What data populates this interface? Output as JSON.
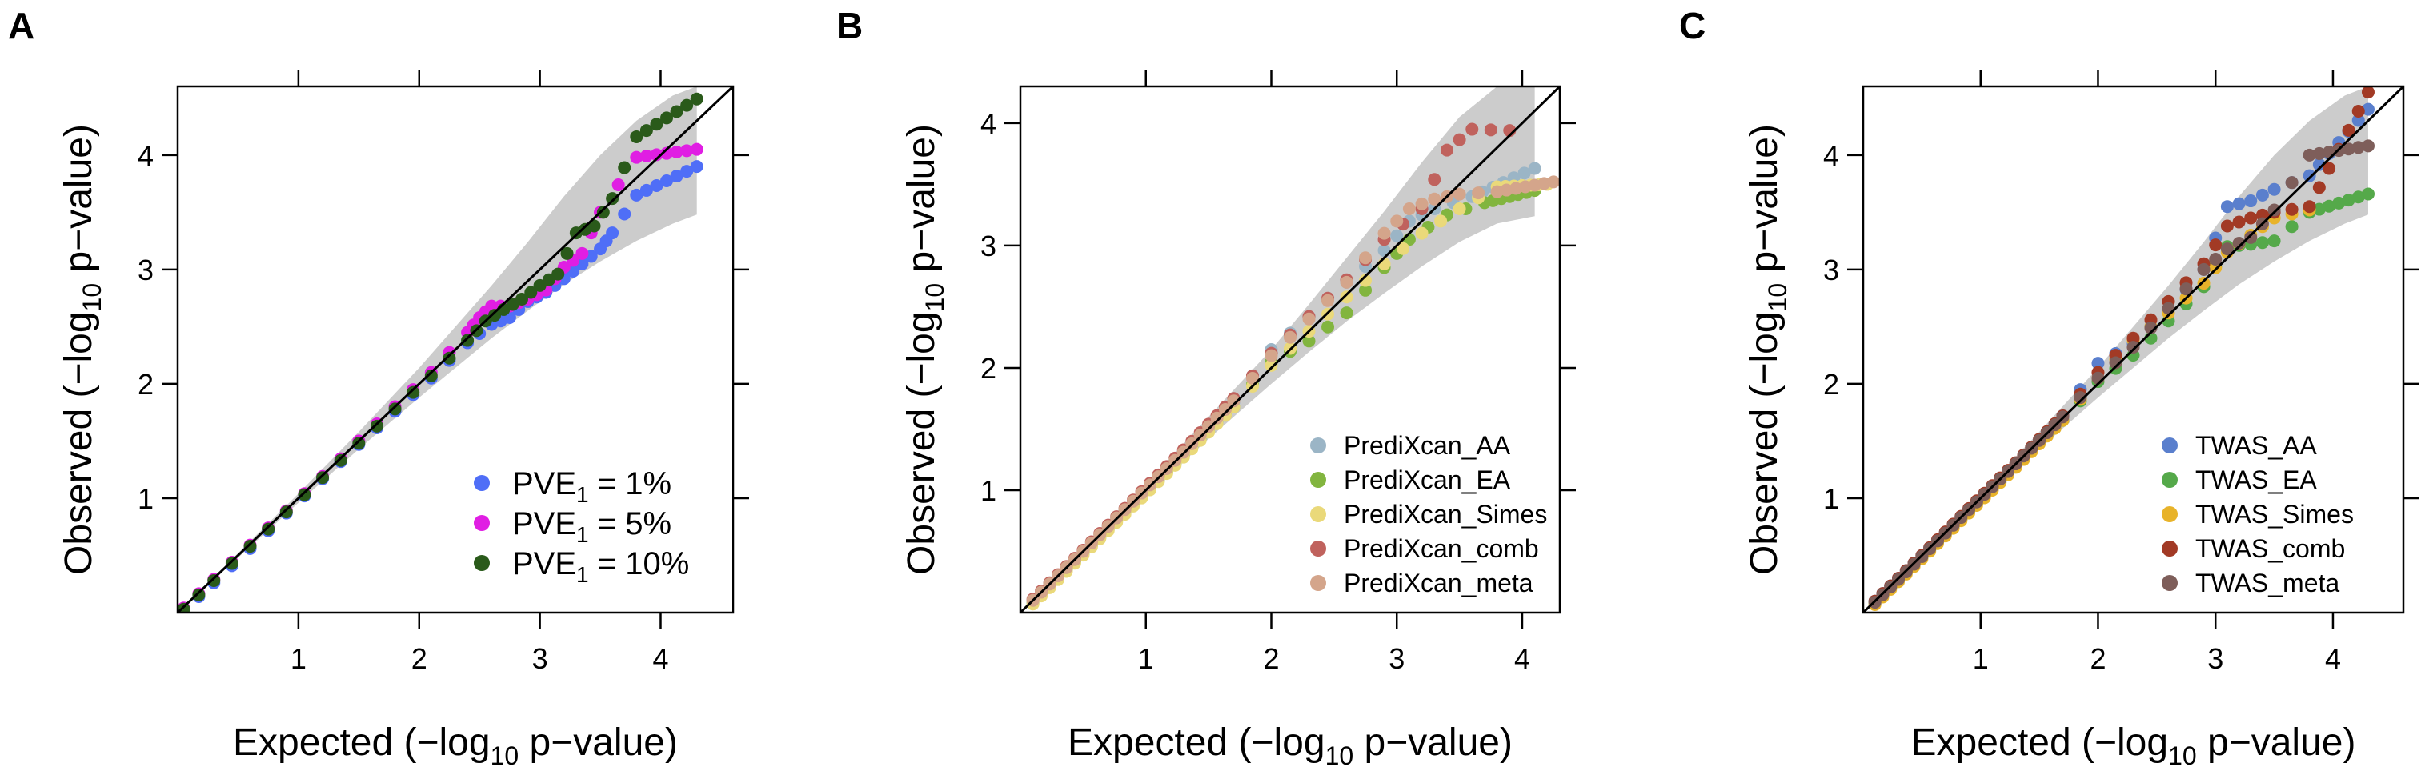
{
  "figure": {
    "xlabel_prefix": "Expected (",
    "xlabel_minus": "−log",
    "xlabel_sub": "10",
    "xlabel_suffix": " p−value)",
    "ylabel_prefix": "Observed (",
    "ylabel_minus": "−log",
    "ylabel_sub": "10",
    "ylabel_suffix": " p−value)"
  },
  "chart_data": [
    {
      "panel": "A",
      "type": "scatter",
      "title": "",
      "xlim": [
        0,
        4.6
      ],
      "ylim": [
        0,
        4.6
      ],
      "xticks": [
        1,
        2,
        3,
        4
      ],
      "yticks": [
        1,
        2,
        3,
        4
      ],
      "grid": false,
      "reference_line": "y = x",
      "confidence_band": {
        "color": "#cccccc",
        "x": [
          0.0,
          0.5,
          1.0,
          1.5,
          2.0,
          2.3,
          2.6,
          2.9,
          3.2,
          3.5,
          3.8,
          4.1,
          4.3
        ],
        "lower": [
          0.0,
          0.48,
          0.96,
          1.43,
          1.88,
          2.14,
          2.4,
          2.64,
          2.87,
          3.07,
          3.25,
          3.4,
          3.48
        ],
        "upper": [
          0.0,
          0.52,
          1.04,
          1.58,
          2.14,
          2.5,
          2.86,
          3.24,
          3.64,
          4.0,
          4.3,
          4.52,
          4.6
        ]
      },
      "legend": {
        "position": "bottom-right",
        "entries": [
          {
            "base": "PVE",
            "sub": "1",
            "rest": " = 1%",
            "color": "#4f6ef7"
          },
          {
            "base": "PVE",
            "sub": "1",
            "rest": " = 5%",
            "color": "#e01ee3"
          },
          {
            "base": "PVE",
            "sub": "1",
            "rest": " = 10%",
            "color": "#2a5a1a"
          }
        ]
      },
      "series": [
        {
          "name": "PVE1 = 1%",
          "color": "#4f6ef7",
          "x": [
            0.05,
            0.3,
            0.6,
            0.9,
            1.2,
            1.5,
            1.8,
            2.1,
            2.4,
            2.6,
            2.75,
            2.9,
            3.05,
            3.2,
            3.35,
            3.5,
            3.6,
            3.8,
            4.3
          ],
          "y": [
            0.02,
            0.26,
            0.56,
            0.87,
            1.17,
            1.47,
            1.76,
            2.05,
            2.36,
            2.52,
            2.58,
            2.72,
            2.8,
            2.92,
            3.05,
            3.18,
            3.32,
            3.65,
            3.9
          ]
        },
        {
          "name": "PVE1 = 5%",
          "color": "#e01ee3",
          "x": [
            0.05,
            0.3,
            0.6,
            0.9,
            1.2,
            1.5,
            1.8,
            2.1,
            2.4,
            2.5,
            2.6,
            2.75,
            2.9,
            3.05,
            3.2,
            3.35,
            3.5,
            3.8,
            4.3
          ],
          "y": [
            0.04,
            0.29,
            0.59,
            0.89,
            1.19,
            1.5,
            1.8,
            2.1,
            2.45,
            2.58,
            2.68,
            2.68,
            2.74,
            2.82,
            3.02,
            3.14,
            3.5,
            3.98,
            4.05
          ]
        },
        {
          "name": "PVE1 = 10%",
          "color": "#2a5a1a",
          "x": [
            0.05,
            0.3,
            0.6,
            0.9,
            1.2,
            1.5,
            1.8,
            2.1,
            2.4,
            2.55,
            2.7,
            2.85,
            3.0,
            3.15,
            3.3,
            3.45,
            3.6,
            3.8,
            4.3
          ],
          "y": [
            0.03,
            0.28,
            0.58,
            0.88,
            1.18,
            1.48,
            1.78,
            2.07,
            2.38,
            2.55,
            2.65,
            2.74,
            2.86,
            2.96,
            3.32,
            3.38,
            3.62,
            4.16,
            4.49
          ]
        }
      ]
    },
    {
      "panel": "B",
      "type": "scatter",
      "title": "",
      "xlim": [
        0,
        4.3
      ],
      "ylim": [
        0,
        4.3
      ],
      "xticks": [
        1,
        2,
        3,
        4
      ],
      "yticks": [
        1,
        2,
        3,
        4
      ],
      "grid": false,
      "reference_line": "y = x",
      "confidence_band": {
        "color": "#cccccc",
        "x": [
          0.0,
          0.5,
          1.0,
          1.5,
          2.0,
          2.3,
          2.6,
          2.9,
          3.2,
          3.5,
          3.8,
          4.1
        ],
        "lower": [
          0.0,
          0.47,
          0.95,
          1.42,
          1.87,
          2.13,
          2.38,
          2.61,
          2.83,
          3.03,
          3.18,
          3.24
        ],
        "upper": [
          0.0,
          0.53,
          1.05,
          1.6,
          2.15,
          2.52,
          2.9,
          3.28,
          3.68,
          4.05,
          4.3,
          4.3
        ]
      },
      "legend": {
        "position": "bottom-right",
        "entries": [
          {
            "label": "PrediXcan_AA",
            "color": "#9bb5c6"
          },
          {
            "label": "PrediXcan_EA",
            "color": "#82b53f"
          },
          {
            "label": "PrediXcan_Simes",
            "color": "#ead97a"
          },
          {
            "label": "PrediXcan_comb",
            "color": "#c0625d"
          },
          {
            "label": "PrediXcan_meta",
            "color": "#d4a58b"
          }
        ]
      },
      "series": [
        {
          "name": "PrediXcan_AA",
          "color": "#9bb5c6",
          "x": [
            0.1,
            0.5,
            0.9,
            1.3,
            1.7,
            2.0,
            2.3,
            2.6,
            2.9,
            3.1,
            3.3,
            3.6,
            4.1
          ],
          "y": [
            0.1,
            0.5,
            0.9,
            1.3,
            1.72,
            2.15,
            2.42,
            2.7,
            2.96,
            3.2,
            3.3,
            3.4,
            3.63
          ]
        },
        {
          "name": "PrediXcan_EA",
          "color": "#82b53f",
          "x": [
            0.1,
            0.5,
            0.9,
            1.3,
            1.7,
            2.0,
            2.3,
            2.6,
            2.9,
            3.1,
            3.4,
            3.7,
            4.1
          ],
          "y": [
            0.08,
            0.48,
            0.88,
            1.28,
            1.68,
            2.05,
            2.22,
            2.45,
            2.82,
            3.05,
            3.25,
            3.35,
            3.45
          ]
        },
        {
          "name": "PrediXcan_Simes",
          "color": "#ead97a",
          "x": [
            0.1,
            0.5,
            0.9,
            1.3,
            1.7,
            2.0,
            2.3,
            2.6,
            2.9,
            3.2,
            3.5,
            3.8,
            4.2
          ],
          "y": [
            0.07,
            0.47,
            0.87,
            1.27,
            1.68,
            2.02,
            2.3,
            2.58,
            2.85,
            3.1,
            3.3,
            3.48,
            3.5
          ]
        },
        {
          "name": "PrediXcan_comb",
          "color": "#c0625d",
          "x": [
            0.1,
            0.5,
            0.9,
            1.3,
            1.7,
            2.0,
            2.3,
            2.6,
            2.9,
            3.2,
            3.4,
            3.6,
            3.9
          ],
          "y": [
            0.11,
            0.51,
            0.92,
            1.33,
            1.75,
            2.12,
            2.42,
            2.72,
            3.05,
            3.3,
            3.78,
            3.95,
            3.94
          ]
        },
        {
          "name": "PrediXcan_meta",
          "color": "#d4a58b",
          "x": [
            0.1,
            0.5,
            0.9,
            1.3,
            1.7,
            2.0,
            2.3,
            2.6,
            2.9,
            3.1,
            3.3,
            3.5,
            3.8,
            4.25
          ],
          "y": [
            0.1,
            0.5,
            0.91,
            1.31,
            1.73,
            2.1,
            2.4,
            2.7,
            3.1,
            3.3,
            3.38,
            3.42,
            3.44,
            3.52
          ]
        }
      ]
    },
    {
      "panel": "C",
      "type": "scatter",
      "title": "",
      "xlim": [
        0,
        4.6
      ],
      "ylim": [
        0,
        4.6
      ],
      "xticks": [
        1,
        2,
        3,
        4
      ],
      "yticks": [
        1,
        2,
        3,
        4
      ],
      "grid": false,
      "reference_line": "y = x",
      "confidence_band": {
        "color": "#cccccc",
        "x": [
          0.0,
          0.5,
          1.0,
          1.5,
          2.0,
          2.3,
          2.6,
          2.9,
          3.2,
          3.5,
          3.8,
          4.1,
          4.3
        ],
        "lower": [
          0.0,
          0.48,
          0.96,
          1.43,
          1.88,
          2.14,
          2.4,
          2.64,
          2.87,
          3.07,
          3.25,
          3.4,
          3.48
        ],
        "upper": [
          0.0,
          0.52,
          1.04,
          1.58,
          2.14,
          2.5,
          2.86,
          3.24,
          3.64,
          4.0,
          4.3,
          4.52,
          4.6
        ]
      },
      "legend": {
        "position": "bottom-right",
        "entries": [
          {
            "label": "TWAS_AA",
            "color": "#5a7fcd"
          },
          {
            "label": "TWAS_EA",
            "color": "#55a94a"
          },
          {
            "label": "TWAS_Simes",
            "color": "#e8b32a"
          },
          {
            "label": "TWAS_comb",
            "color": "#a23a25"
          },
          {
            "label": "TWAS_meta",
            "color": "#7e5e5a"
          }
        ]
      },
      "series": [
        {
          "name": "TWAS_AA",
          "color": "#5a7fcd",
          "x": [
            0.1,
            0.5,
            0.9,
            1.3,
            1.7,
            2.0,
            2.3,
            2.6,
            2.9,
            3.1,
            3.3,
            3.5,
            3.8,
            4.3
          ],
          "y": [
            0.1,
            0.5,
            0.9,
            1.3,
            1.72,
            2.18,
            2.35,
            2.65,
            3.0,
            3.55,
            3.6,
            3.7,
            3.82,
            4.4
          ]
        },
        {
          "name": "TWAS_EA",
          "color": "#55a94a",
          "x": [
            0.1,
            0.5,
            0.9,
            1.3,
            1.7,
            2.0,
            2.3,
            2.6,
            2.9,
            3.1,
            3.3,
            3.5,
            3.8,
            4.3
          ],
          "y": [
            0.08,
            0.48,
            0.88,
            1.28,
            1.68,
            2.02,
            2.25,
            2.55,
            2.85,
            3.2,
            3.22,
            3.25,
            3.5,
            3.66
          ]
        },
        {
          "name": "TWAS_Simes",
          "color": "#e8b32a",
          "x": [
            0.1,
            0.5,
            0.9,
            1.3,
            1.7,
            2.0,
            2.3,
            2.6,
            2.9,
            3.1,
            3.3,
            3.5,
            3.8
          ],
          "y": [
            0.07,
            0.47,
            0.87,
            1.27,
            1.68,
            2.05,
            2.38,
            2.62,
            2.88,
            3.15,
            3.3,
            3.45,
            3.52
          ]
        },
        {
          "name": "TWAS_comb",
          "color": "#a23a25",
          "x": [
            0.1,
            0.5,
            0.9,
            1.3,
            1.7,
            2.0,
            2.3,
            2.6,
            2.9,
            3.1,
            3.3,
            3.5,
            3.8,
            4.3
          ],
          "y": [
            0.1,
            0.5,
            0.91,
            1.31,
            1.72,
            2.1,
            2.4,
            2.72,
            3.05,
            3.38,
            3.45,
            3.5,
            3.55,
            4.55
          ]
        },
        {
          "name": "TWAS_meta",
          "color": "#7e5e5a",
          "x": [
            0.1,
            0.5,
            0.9,
            1.3,
            1.7,
            2.0,
            2.3,
            2.6,
            2.9,
            3.1,
            3.3,
            3.5,
            3.8,
            4.3
          ],
          "y": [
            0.09,
            0.49,
            0.9,
            1.3,
            1.71,
            2.05,
            2.32,
            2.66,
            3.0,
            3.18,
            3.28,
            3.52,
            4.0,
            4.08
          ]
        }
      ]
    }
  ]
}
